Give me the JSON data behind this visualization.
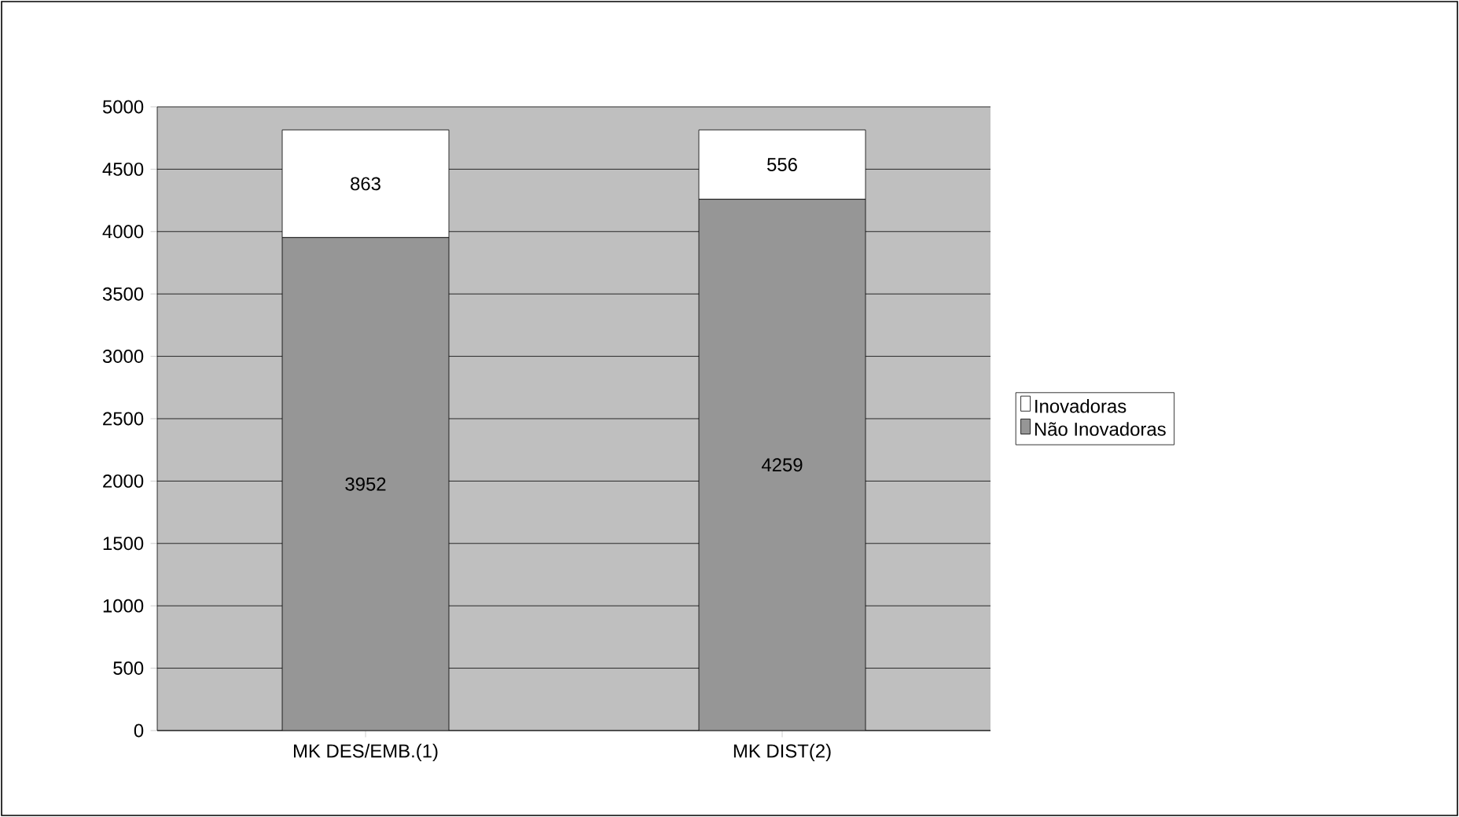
{
  "chart_data": {
    "type": "bar",
    "stacked": true,
    "categories": [
      "MK DES/EMB.(1)",
      "MK DIST(2)"
    ],
    "series": [
      {
        "name": "Não Inovadoras",
        "color": "#969696",
        "values": [
          3952,
          4259
        ]
      },
      {
        "name": "Inovadoras",
        "color": "#ffffff",
        "values": [
          863,
          556
        ]
      }
    ],
    "ylim": [
      0,
      5000
    ],
    "yticks": [
      0,
      500,
      1000,
      1500,
      2000,
      2500,
      3000,
      3500,
      4000,
      4500,
      5000
    ],
    "grid": "y",
    "legend": "right",
    "data_labels": true
  }
}
